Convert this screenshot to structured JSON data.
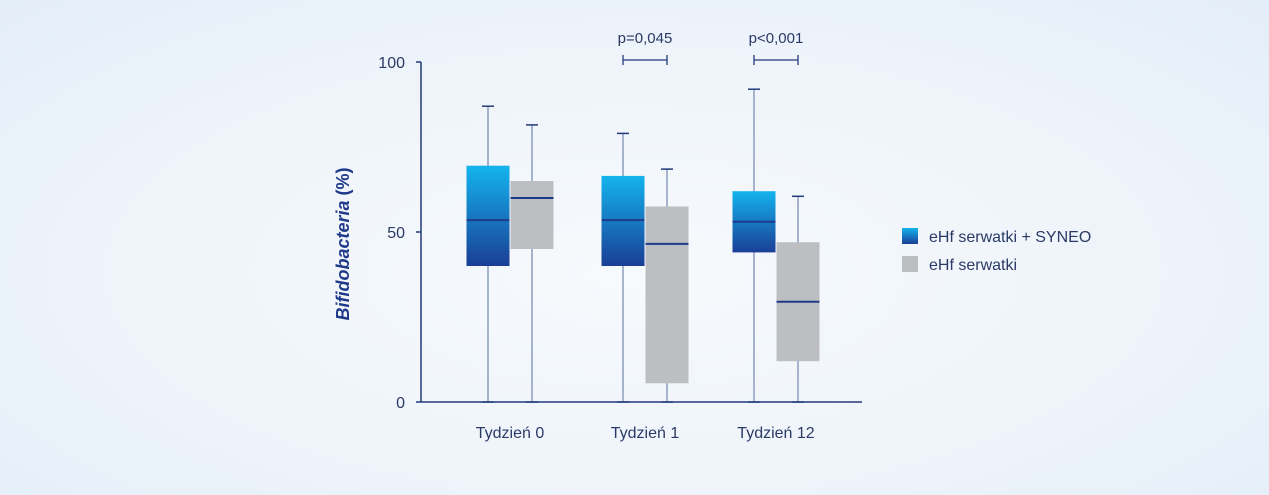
{
  "chart_data": {
    "type": "boxplot",
    "ylabel_italic": "Bifidobacteria",
    "ylabel_suffix": " (%)",
    "ylim": [
      0,
      100
    ],
    "yticks": [
      0,
      50,
      100
    ],
    "categories": [
      "Tydzień 0",
      "Tydzień 1",
      "Tydzień 12"
    ],
    "series": [
      {
        "name": "eHf serwatki + SYNEO",
        "color_top": "#14b4ee",
        "color_bottom": "#1a3e96",
        "boxes": [
          {
            "min": 0,
            "q1": 40,
            "median": 53.5,
            "q3": 69.5,
            "max": 87
          },
          {
            "min": 0,
            "q1": 40,
            "median": 53.5,
            "q3": 66.5,
            "max": 79
          },
          {
            "min": 0,
            "q1": 44,
            "median": 53,
            "q3": 62,
            "max": 92
          }
        ]
      },
      {
        "name": "eHf serwatki",
        "color": "#bdbec2",
        "boxes": [
          {
            "min": 0,
            "q1": 45,
            "median": 60,
            "q3": 65,
            "max": 81.5
          },
          {
            "min": 0,
            "q1": 5.5,
            "median": 46.5,
            "q3": 57.5,
            "max": 68.5
          },
          {
            "min": 0,
            "q1": 12,
            "median": 29.5,
            "q3": 47,
            "max": 60.5
          }
        ]
      }
    ],
    "significance": [
      {
        "category_index": 1,
        "label": "p=0,045"
      },
      {
        "category_index": 2,
        "label": "p<0,001"
      }
    ],
    "legend_position": "right",
    "grid": false
  }
}
